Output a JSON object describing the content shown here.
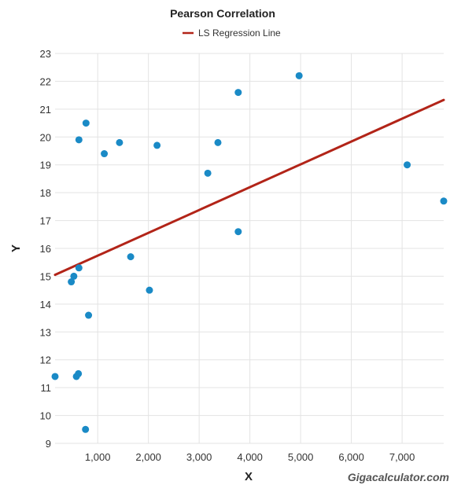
{
  "chart_data": {
    "type": "scatter",
    "title": "Pearson Correlation",
    "xlabel": "X",
    "ylabel": "Y",
    "xlim": [
      160,
      7820
    ],
    "ylim": [
      9,
      23
    ],
    "x_ticks": [
      1000,
      2000,
      3000,
      4000,
      5000,
      6000,
      7000
    ],
    "x_tick_labels": [
      "1,000",
      "2,000",
      "3,000",
      "4,000",
      "5,000",
      "6,000",
      "7,000"
    ],
    "y_ticks": [
      9,
      10,
      11,
      12,
      13,
      14,
      15,
      16,
      17,
      18,
      19,
      20,
      21,
      22,
      23
    ],
    "y_tick_labels": [
      "9",
      "10",
      "11",
      "12",
      "13",
      "14",
      "15",
      "16",
      "17",
      "18",
      "19",
      "20",
      "21",
      "22",
      "23"
    ],
    "grid": true,
    "legend_position": "top-center",
    "colors": {
      "points": "#1a8ac6",
      "regression": "#b22418"
    },
    "points": [
      {
        "x": 160,
        "y": 11.4
      },
      {
        "x": 480,
        "y": 14.8
      },
      {
        "x": 530,
        "y": 15.0
      },
      {
        "x": 580,
        "y": 11.4
      },
      {
        "x": 620,
        "y": 11.5
      },
      {
        "x": 630,
        "y": 15.3
      },
      {
        "x": 630,
        "y": 19.9
      },
      {
        "x": 760,
        "y": 9.5
      },
      {
        "x": 770,
        "y": 20.5
      },
      {
        "x": 820,
        "y": 13.6
      },
      {
        "x": 1130,
        "y": 19.4
      },
      {
        "x": 1430,
        "y": 19.8
      },
      {
        "x": 1650,
        "y": 15.7
      },
      {
        "x": 2020,
        "y": 14.5
      },
      {
        "x": 2170,
        "y": 19.7
      },
      {
        "x": 3170,
        "y": 18.7
      },
      {
        "x": 3370,
        "y": 19.8
      },
      {
        "x": 3770,
        "y": 21.6
      },
      {
        "x": 3770,
        "y": 16.6
      },
      {
        "x": 4970,
        "y": 22.2
      },
      {
        "x": 7100,
        "y": 19.0
      },
      {
        "x": 7820,
        "y": 17.7
      }
    ],
    "series": [
      {
        "name": "LS Regression Line",
        "type": "line",
        "x": [
          160,
          7820
        ],
        "y": [
          15.05,
          21.33
        ]
      }
    ]
  },
  "watermark": "Gigacalculator.com"
}
